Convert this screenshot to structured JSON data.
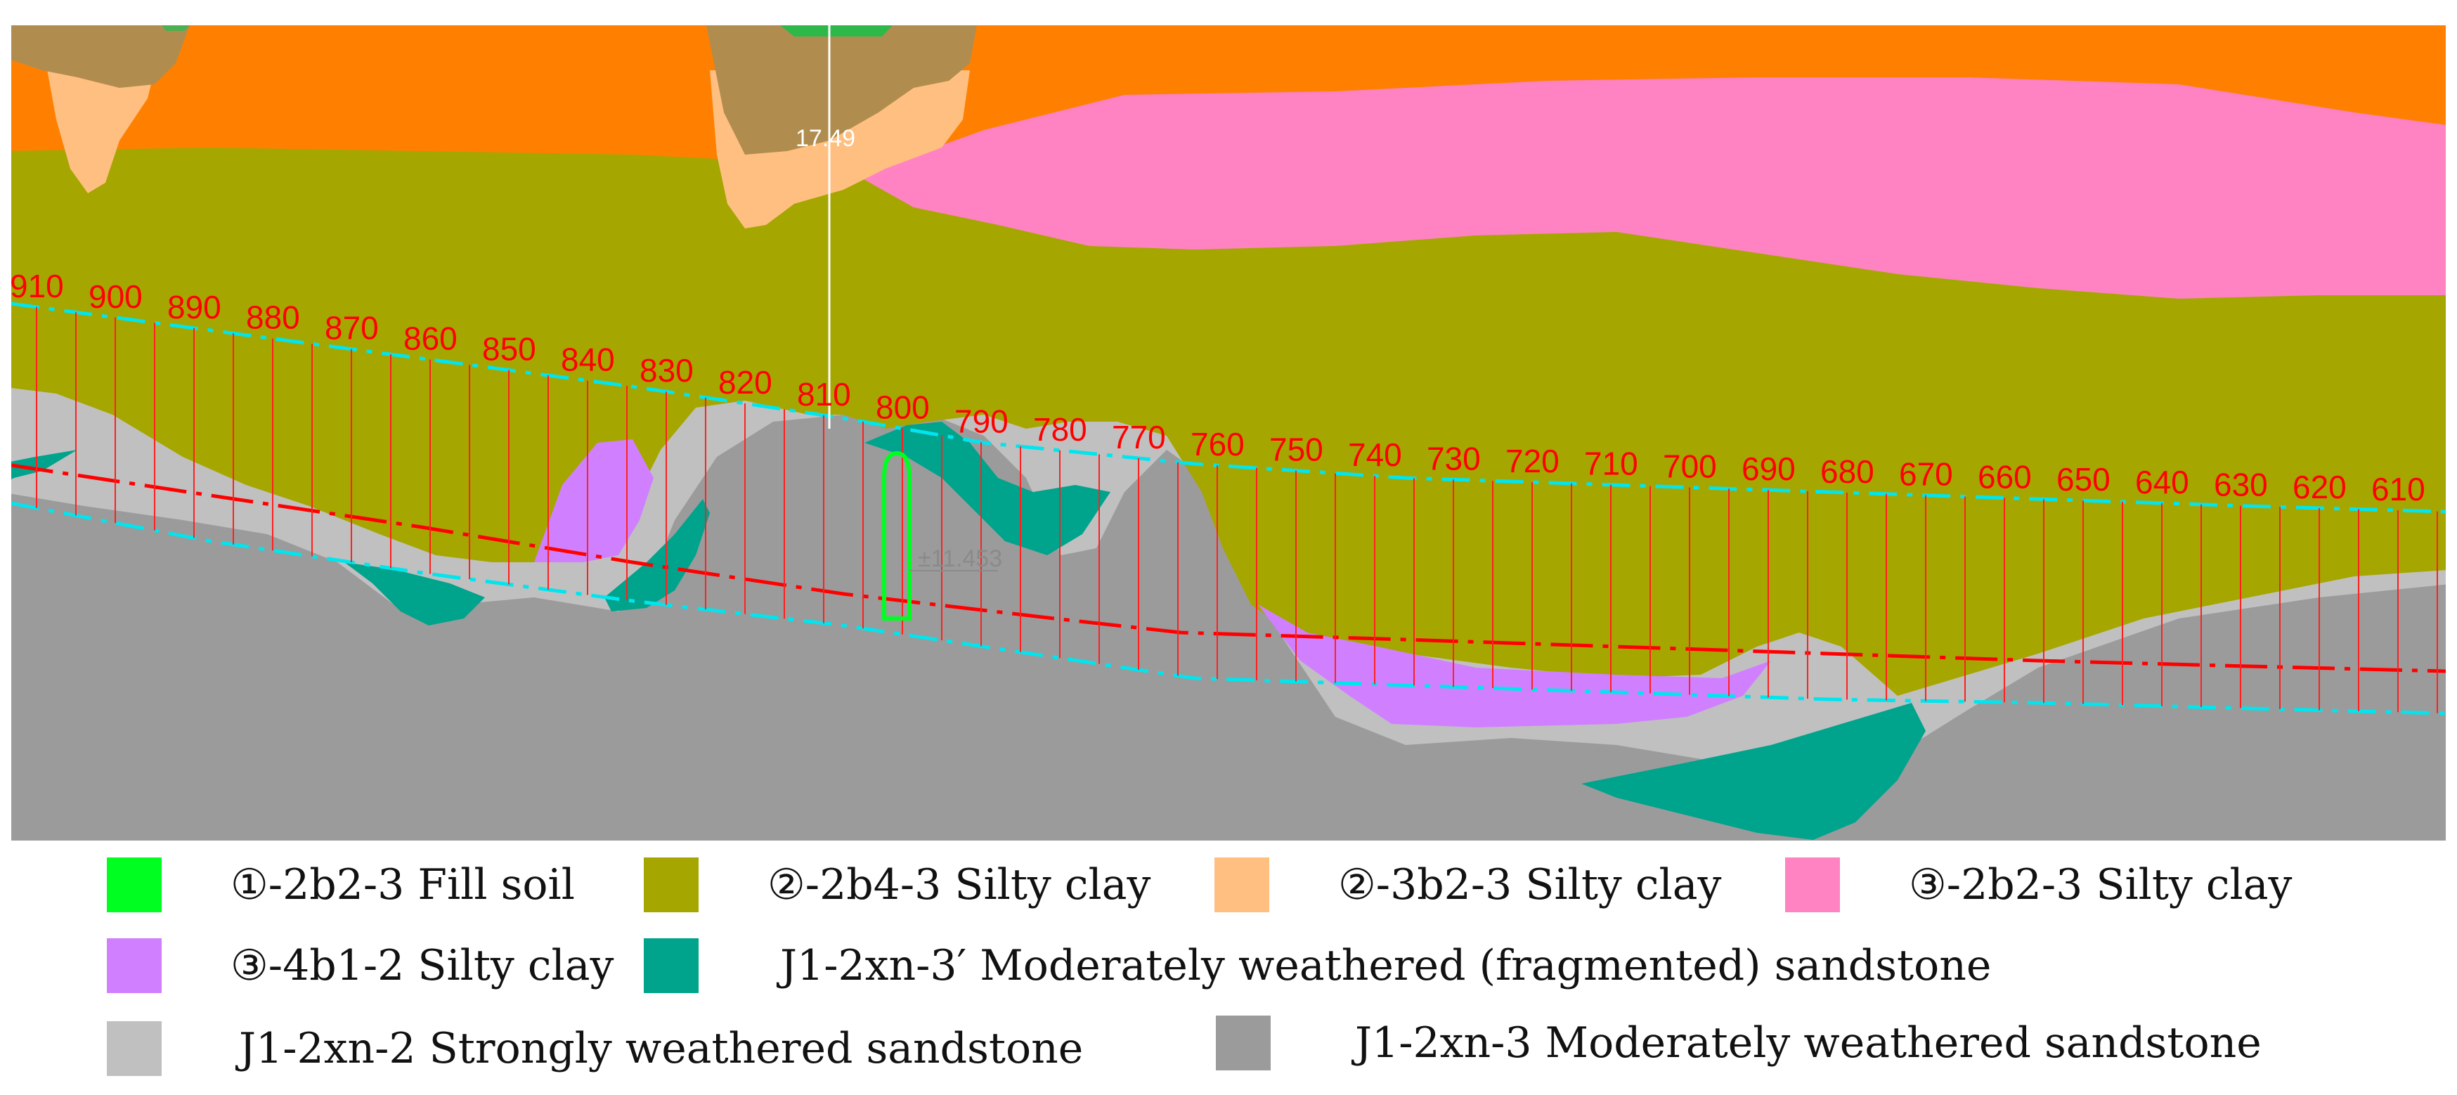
{
  "colors": {
    "fill_soil": "#00ff21",
    "silty_clay_2b4": "#a6a600",
    "silty_clay_3b2": "#ffbf80",
    "silty_clay_2b2": "#ff82c3",
    "silty_clay_4b1": "#d080ff",
    "fragmented_sandstone": "#00a38c",
    "strong_sandstone": "#c0c0c0",
    "moderate_sandstone": "#9b9b9b",
    "orange_layer": "#ff8000",
    "brown_fill": "#b08d4e",
    "chainage_red": "#ff0000",
    "dashed_cyan": "#00e5ee"
  },
  "section": {
    "chainages": [
      "910",
      "900",
      "890",
      "880",
      "870",
      "860",
      "850",
      "840",
      "830",
      "820",
      "810",
      "800",
      "790",
      "780",
      "770",
      "760",
      "750",
      "740",
      "730",
      "720",
      "710",
      "700",
      "690",
      "680",
      "670",
      "660",
      "650",
      "640",
      "630",
      "620",
      "610"
    ],
    "marker_value": "17.49",
    "elevation_value": "±11.453"
  },
  "legend": {
    "items": [
      {
        "label": "①-2b2-3 Fill soil",
        "color": "#00ff21"
      },
      {
        "label": "②-2b4-3 Silty clay",
        "color": "#a6a600"
      },
      {
        "label": "②-3b2-3 Silty clay",
        "color": "#ffbf80"
      },
      {
        "label": "③-2b2-3 Silty clay",
        "color": "#ff82c3"
      },
      {
        "label": "③-4b1-2 Silty clay",
        "color": "#d080ff"
      },
      {
        "label": "J1-2xn-3′ Moderately weathered (fragmented) sandstone",
        "color": "#00a38c"
      },
      {
        "label": "J1-2xn-2 Strongly weathered sandstone",
        "color": "#c0c0c0"
      },
      {
        "label": "J1-2xn-3 Moderately weathered sandstone",
        "color": "#9b9b9b"
      }
    ]
  }
}
